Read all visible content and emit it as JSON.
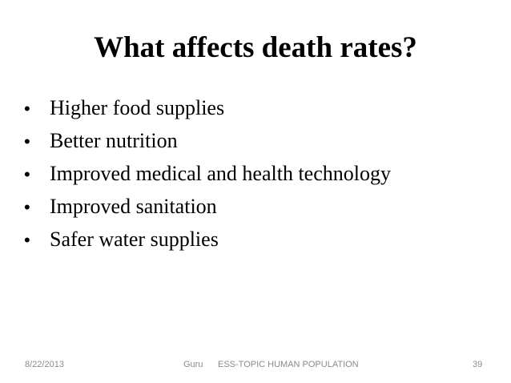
{
  "slide": {
    "title": "What affects death rates?",
    "bullet_symbol": "•",
    "bullets": [
      "Higher food supplies",
      "Better nutrition",
      "Improved medical and health technology",
      "Improved sanitation",
      "Safer water supplies"
    ]
  },
  "footer": {
    "date": "8/22/2013",
    "author": "Guru",
    "topic": "ESS-TOPIC HUMAN POPULATION",
    "page_number": "39"
  }
}
